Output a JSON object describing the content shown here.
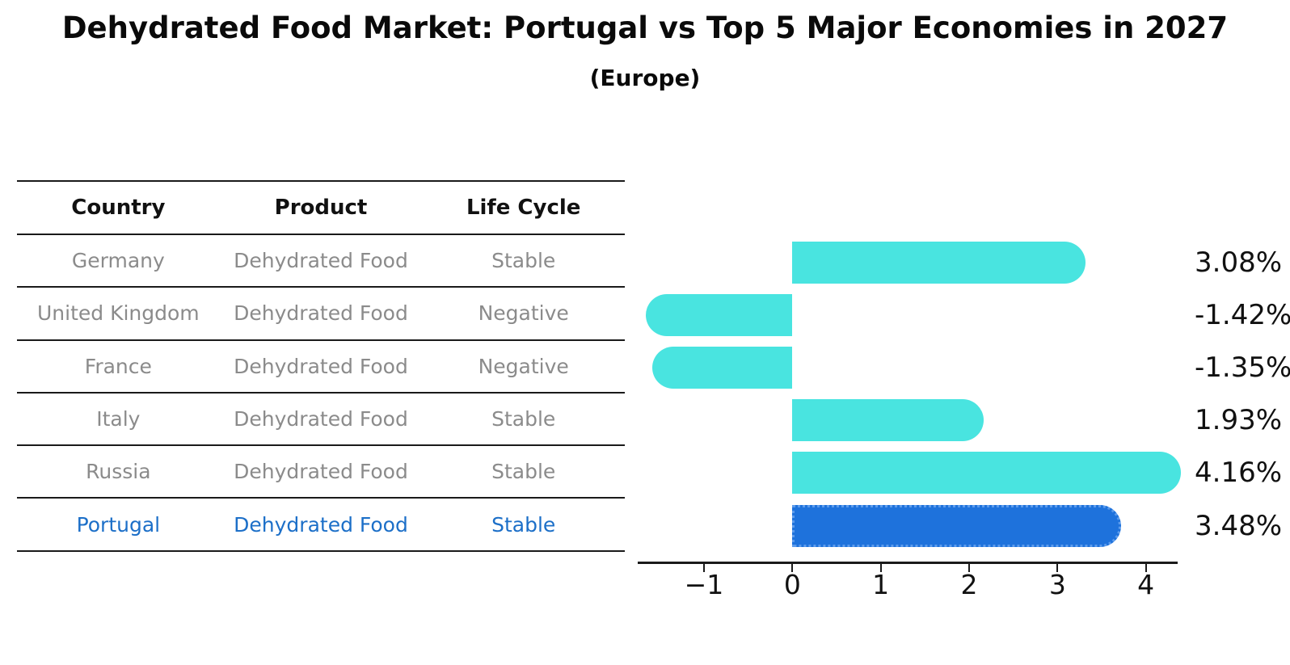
{
  "title": "Dehydrated Food Market: Portugal vs Top 5 Major Economies in 2027",
  "subtitle": "(Europe)",
  "colors": {
    "bar_default": "#49e4e0",
    "bar_highlight": "#1e72dc",
    "bar_highlight_border": "#5d9cec",
    "highlight_text": "#1c6fc8",
    "table_text": "#8b8b8b",
    "header_text": "#111111",
    "axis": "#1a1a1a"
  },
  "table": {
    "headers": [
      "Country",
      "Product",
      "Life Cycle"
    ],
    "rows": [
      {
        "country": "Germany",
        "product": "Dehydrated Food",
        "life_cycle": "Stable",
        "highlight": false
      },
      {
        "country": "United Kingdom",
        "product": "Dehydrated Food",
        "life_cycle": "Negative",
        "highlight": false
      },
      {
        "country": "France",
        "product": "Dehydrated Food",
        "life_cycle": "Negative",
        "highlight": false
      },
      {
        "country": "Italy",
        "product": "Dehydrated Food",
        "life_cycle": "Stable",
        "highlight": false
      },
      {
        "country": "Russia",
        "product": "Dehydrated Food",
        "life_cycle": "Stable",
        "highlight": true
      }
    ],
    "highlight_row": {
      "country": "Portugal",
      "product": "Dehydrated Food",
      "life_cycle": "Stable"
    }
  },
  "chart_data": {
    "type": "bar",
    "orientation": "horizontal",
    "title": "Dehydrated Food Market: Portugal vs Top 5 Major Economies in 2027",
    "subtitle": "(Europe)",
    "categories": [
      "Germany",
      "United Kingdom",
      "France",
      "Italy",
      "Russia",
      "Portugal"
    ],
    "values": [
      3.08,
      -1.42,
      -1.35,
      1.93,
      4.16,
      3.48
    ],
    "value_labels": [
      "3.08%",
      "-1.42%",
      "-1.35%",
      "1.93%",
      "4.16%",
      "3.48%"
    ],
    "unit": "%",
    "highlight_index": 5,
    "highlight_category": "Portugal",
    "xticks": [
      {
        "value": -1,
        "label": "−1"
      },
      {
        "value": 0,
        "label": "0"
      },
      {
        "value": 1,
        "label": "1"
      },
      {
        "value": 2,
        "label": "2"
      },
      {
        "value": 3,
        "label": "3"
      },
      {
        "value": 4,
        "label": "4"
      }
    ],
    "xlim": [
      -1.75,
      4.36
    ],
    "grid": false,
    "legend": false
  }
}
